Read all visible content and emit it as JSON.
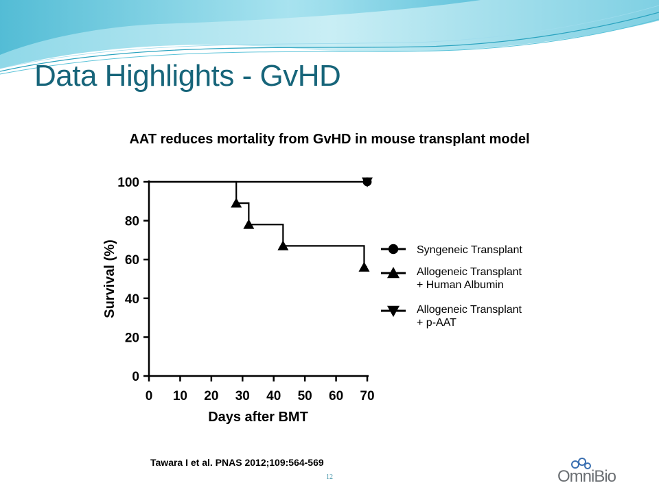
{
  "slide": {
    "title": "Data Highlights - GvHD",
    "subtitle": "AAT reduces mortality from GvHD in mouse transplant model",
    "citation": "Tawara I et al. PNAS 2012;109:564-569",
    "page_number": "12",
    "logo_text": "OmniBio",
    "colors": {
      "title": "#17657a",
      "wave_light": "#bfe9f2",
      "wave_mid": "#5bc3d9",
      "accent": "#2aa3bf"
    }
  },
  "chart_data": {
    "type": "line",
    "step": true,
    "xlabel": "Days after BMT",
    "ylabel": "Survival (%)",
    "xlim": [
      0,
      70
    ],
    "ylim": [
      0,
      100
    ],
    "x_ticks": [
      0,
      10,
      20,
      30,
      40,
      50,
      60,
      70
    ],
    "y_ticks": [
      0,
      20,
      40,
      60,
      80,
      100
    ],
    "grid": false,
    "legend_position": "right",
    "series": [
      {
        "name": "Syngeneic Transplant",
        "marker": "circle",
        "x": [
          0,
          70
        ],
        "y": [
          100,
          100
        ],
        "marker_points": [
          [
            70,
            100
          ]
        ]
      },
      {
        "name": "Allogeneic Transplant + Human Albumin",
        "legend_lines": [
          "Allogeneic Transplant",
          "+ Human Albumin"
        ],
        "marker": "triangle-up",
        "x": [
          0,
          28,
          32,
          43,
          69,
          70
        ],
        "y": [
          100,
          89,
          78,
          67,
          56,
          56
        ],
        "marker_points": [
          [
            28,
            89
          ],
          [
            32,
            78
          ],
          [
            43,
            67
          ],
          [
            69,
            56
          ]
        ]
      },
      {
        "name": "Allogeneic Transplant + p-AAT",
        "legend_lines": [
          "Allogeneic Transplant",
          "+ p-AAT"
        ],
        "marker": "triangle-down",
        "x": [
          0,
          70
        ],
        "y": [
          100,
          100
        ],
        "marker_points": [
          [
            70,
            100
          ]
        ]
      }
    ]
  }
}
